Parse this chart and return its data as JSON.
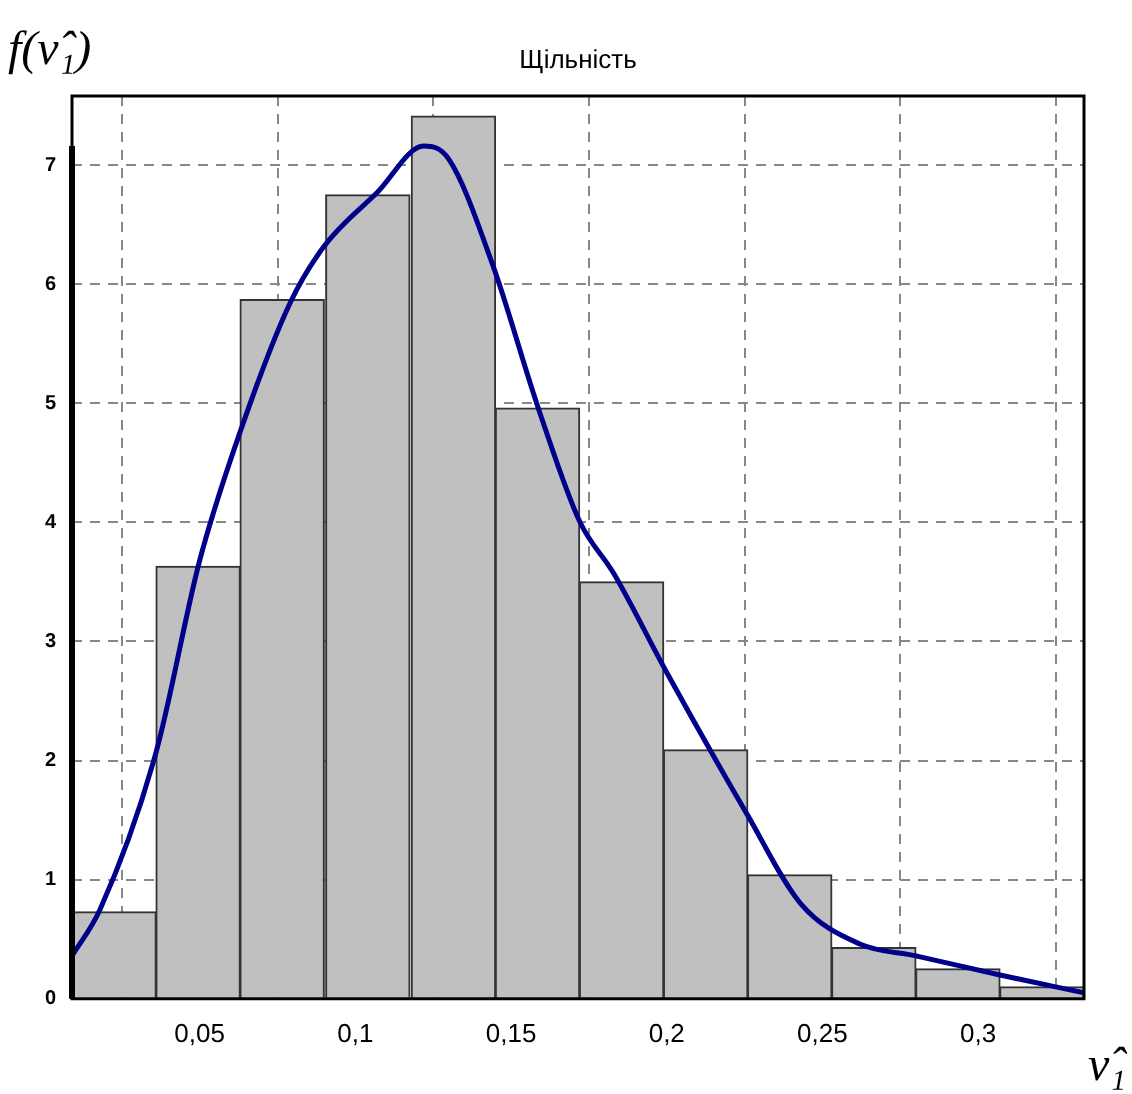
{
  "chart_data": {
    "type": "histogram",
    "title": "Щільність",
    "xlabel": "ν̂₁",
    "ylabel": "f(ν̂₁)",
    "bins": [
      0.009,
      0.036,
      0.063,
      0.09,
      0.118,
      0.145,
      0.172,
      0.199,
      0.226,
      0.253,
      0.28,
      0.307,
      0.334
    ],
    "values": [
      0.73,
      3.63,
      5.87,
      6.75,
      7.41,
      4.96,
      3.5,
      2.09,
      1.04,
      0.43,
      0.25,
      0.1
    ],
    "color": "#c0c0c0",
    "series": [
      {
        "type": "line",
        "color": "#00008b",
        "x": [
          0.009,
          0.018,
          0.036,
          0.05,
          0.063,
          0.079,
          0.09,
          0.107,
          0.122,
          0.13,
          0.144,
          0.159,
          0.172,
          0.183,
          0.2,
          0.226,
          0.243,
          0.262,
          0.28,
          0.307,
          0.334
        ],
        "values": [
          0.36,
          0.75,
          2.07,
          3.68,
          4.76,
          5.84,
          6.32,
          6.77,
          7.16,
          7.05,
          6.17,
          4.94,
          4.01,
          3.57,
          2.74,
          1.54,
          0.8,
          0.46,
          0.36,
          0.2,
          0.05
        ]
      }
    ],
    "xlim": [
      0.009,
      0.334
    ],
    "ylim": [
      0,
      7.58
    ],
    "xticks": [
      {
        "value": 0.05,
        "label": "0,05"
      },
      {
        "value": 0.1,
        "label": "0,1"
      },
      {
        "value": 0.15,
        "label": "0,15"
      },
      {
        "value": 0.2,
        "label": "0,2"
      },
      {
        "value": 0.25,
        "label": "0,25"
      },
      {
        "value": 0.3,
        "label": "0,3"
      }
    ],
    "yticks": [
      0,
      1,
      2,
      3,
      4,
      5,
      6,
      7
    ],
    "grid": true,
    "line_style": "solid",
    "marker": "none"
  }
}
